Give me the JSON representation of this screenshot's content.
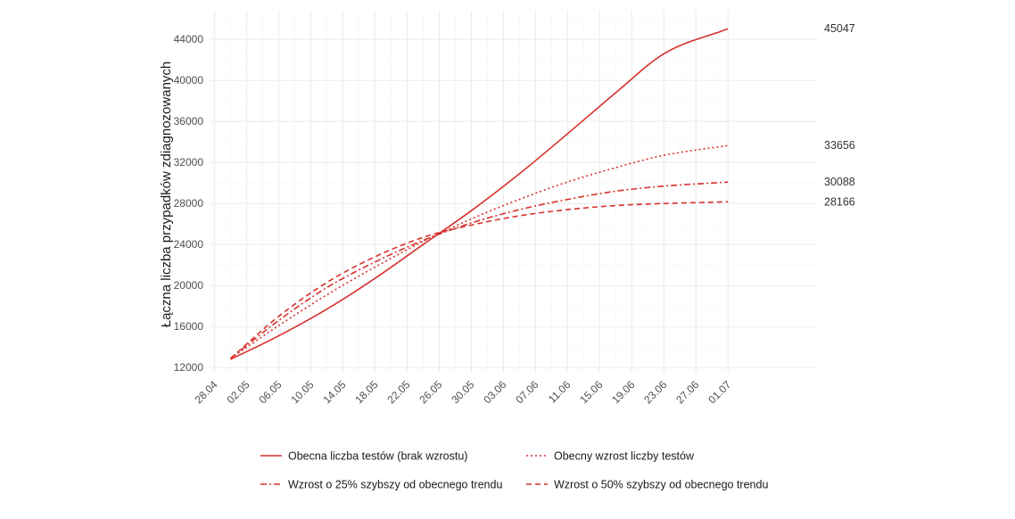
{
  "chart_data": {
    "type": "line",
    "title": "",
    "xlabel": "",
    "ylabel": "Łączna liczba przypadków zdiagnozowanych",
    "x_ticks": [
      "28.04",
      "02.05",
      "06.05",
      "10.05",
      "14.05",
      "18.05",
      "22.05",
      "26.05",
      "30.05",
      "03.06",
      "07.06",
      "11.06",
      "15.06",
      "19.06",
      "23.06",
      "27.06",
      "01.07"
    ],
    "y_ticks": [
      12000,
      16000,
      20000,
      24000,
      28000,
      32000,
      36000,
      40000,
      44000
    ],
    "ylim": [
      11500,
      46800
    ],
    "xlim_days": [
      -0.5,
      75.2
    ],
    "grid": true,
    "legend_position": "bottom",
    "line_color": "#d7312c",
    "series": [
      {
        "name": "Obecna liczba testów (brak wzrostu)",
        "style": "solid",
        "end_label": "45047",
        "points": [
          [
            "30.04",
            12800
          ],
          [
            "06.05",
            15100
          ],
          [
            "12.05",
            17700
          ],
          [
            "18.05",
            20700
          ],
          [
            "24.05",
            24000
          ],
          [
            "30.05",
            27300
          ],
          [
            "05.06",
            30900
          ],
          [
            "11.06",
            34800
          ],
          [
            "17.06",
            38800
          ],
          [
            "23.06",
            42600
          ],
          [
            "01.07",
            45047
          ]
        ]
      },
      {
        "name": "Obecny wzrost liczby testów",
        "style": "dotted",
        "end_label": "33656",
        "points": [
          [
            "30.04",
            12900
          ],
          [
            "06.05",
            16100
          ],
          [
            "12.05",
            19100
          ],
          [
            "18.05",
            21800
          ],
          [
            "24.05",
            24300
          ],
          [
            "30.05",
            26500
          ],
          [
            "05.06",
            28400
          ],
          [
            "11.06",
            30100
          ],
          [
            "17.06",
            31500
          ],
          [
            "23.06",
            32700
          ],
          [
            "01.07",
            33656
          ]
        ]
      },
      {
        "name": "Wzrost o 25% szybszy od obecnego trendu",
        "style": "dashdot",
        "end_label": "30088",
        "points": [
          [
            "30.04",
            12900
          ],
          [
            "06.05",
            16600
          ],
          [
            "12.05",
            19800
          ],
          [
            "18.05",
            22300
          ],
          [
            "24.05",
            24400
          ],
          [
            "30.05",
            26100
          ],
          [
            "05.06",
            27400
          ],
          [
            "11.06",
            28400
          ],
          [
            "17.06",
            29200
          ],
          [
            "23.06",
            29700
          ],
          [
            "01.07",
            30088
          ]
        ]
      },
      {
        "name": "Wzrost o 50% szybszy od obecnego trendu",
        "style": "dashed",
        "end_label": "28166",
        "points": [
          [
            "30.04",
            12900
          ],
          [
            "06.05",
            17000
          ],
          [
            "12.05",
            20300
          ],
          [
            "18.05",
            22800
          ],
          [
            "24.05",
            24700
          ],
          [
            "30.05",
            25900
          ],
          [
            "05.06",
            26800
          ],
          [
            "11.06",
            27400
          ],
          [
            "17.06",
            27800
          ],
          [
            "23.06",
            28000
          ],
          [
            "01.07",
            28166
          ]
        ]
      }
    ]
  }
}
